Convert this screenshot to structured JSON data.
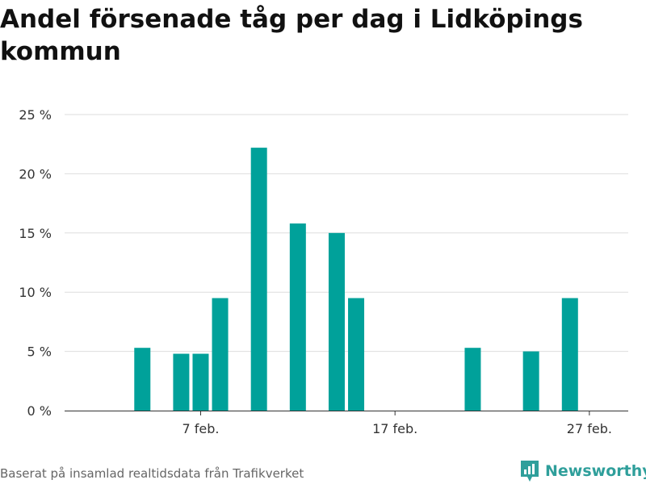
{
  "chart_data": {
    "type": "bar",
    "title": "Andel försenade tåg per dag i Lidköpings kommun",
    "xlabel": "",
    "ylabel": "",
    "ylim": [
      0,
      25
    ],
    "y_ticks": [
      "0 %",
      "5 %",
      "10 %",
      "15 %",
      "20 %",
      "25 %"
    ],
    "y_tick_values": [
      0,
      5,
      10,
      15,
      20,
      25
    ],
    "x_range": [
      "2021-01-31",
      "2021-03-01"
    ],
    "x_ticks": [
      "7 feb.",
      "17 feb.",
      "27 feb."
    ],
    "x_tick_dates": [
      "2021-02-07",
      "2021-02-17",
      "2021-02-27"
    ],
    "grid": true,
    "bar_color": "#00a19a",
    "x": [
      "2021-02-04",
      "2021-02-06",
      "2021-02-07",
      "2021-02-08",
      "2021-02-10",
      "2021-02-12",
      "2021-02-14",
      "2021-02-15",
      "2021-02-16",
      "2021-02-17",
      "2021-02-18",
      "2021-02-19",
      "2021-02-20",
      "2021-02-21",
      "2021-02-22",
      "2021-02-23",
      "2021-02-24",
      "2021-02-25",
      "2021-02-26",
      "2021-02-27",
      "2021-02-28"
    ],
    "values": [
      5.3,
      4.8,
      4.8,
      9.5,
      22.2,
      15.8,
      15.0,
      9.5,
      0,
      0,
      0,
      0,
      0,
      5.3,
      0,
      0,
      5.0,
      0,
      9.5,
      0,
      0
    ]
  },
  "footer": {
    "source": "Baserat på insamlad realtidsdata från Trafikverket",
    "brand": "Newsworthy"
  },
  "colors": {
    "brand": "#2f9f9b",
    "grid": "#dddddd",
    "axis": "#333333"
  }
}
